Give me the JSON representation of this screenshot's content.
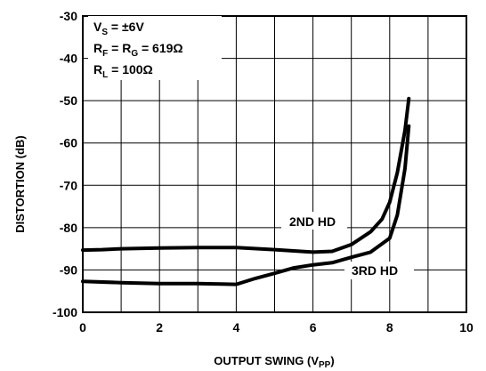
{
  "chart_data": {
    "type": "line",
    "xlabel": "OUTPUT SWING (V",
    "xlabel_sub": "PP",
    "xlabel_end": ")",
    "ylabel": "DISTORTION (dB)",
    "xlim": [
      0,
      10
    ],
    "ylim": [
      -100,
      -30
    ],
    "x_ticks": [
      0,
      2,
      4,
      6,
      8,
      10
    ],
    "y_ticks": [
      -30,
      -40,
      -50,
      -60,
      -70,
      -80,
      -90,
      -100
    ],
    "grid": true,
    "conditions": [
      {
        "main": "V",
        "sub": "S",
        "rest": " = ±6V"
      },
      {
        "main": "R",
        "sub": "F",
        "mid": " = R",
        "sub2": "G",
        "rest": " = 619Ω"
      },
      {
        "main": "R",
        "sub": "L",
        "rest": " = 100Ω"
      }
    ],
    "series": [
      {
        "name": "2ND HD",
        "x": [
          0,
          0.5,
          1,
          2,
          3,
          4,
          5,
          6,
          6.5,
          7,
          7.5,
          7.8,
          8.0,
          8.2,
          8.4,
          8.5
        ],
        "y": [
          -85.3,
          -85.2,
          -85.0,
          -84.8,
          -84.7,
          -84.7,
          -85.2,
          -85.8,
          -85.6,
          -84.0,
          -81.0,
          -78.0,
          -74.0,
          -67.0,
          -57.0,
          -49.5
        ]
      },
      {
        "name": "3RD HD",
        "x": [
          0,
          1,
          2,
          3,
          4,
          4.5,
          5,
          5.5,
          6,
          6.5,
          7,
          7.5,
          8.0,
          8.2,
          8.4,
          8.5
        ],
        "y": [
          -92.7,
          -93.0,
          -93.2,
          -93.2,
          -93.4,
          -92.0,
          -90.8,
          -89.5,
          -88.8,
          -88.3,
          -87.0,
          -85.8,
          -82.5,
          -77.0,
          -66.0,
          -56.0
        ]
      }
    ],
    "labels": [
      {
        "text": "2ND HD",
        "series": "2ND HD"
      },
      {
        "text": "3RD HD",
        "series": "3RD HD"
      }
    ]
  }
}
